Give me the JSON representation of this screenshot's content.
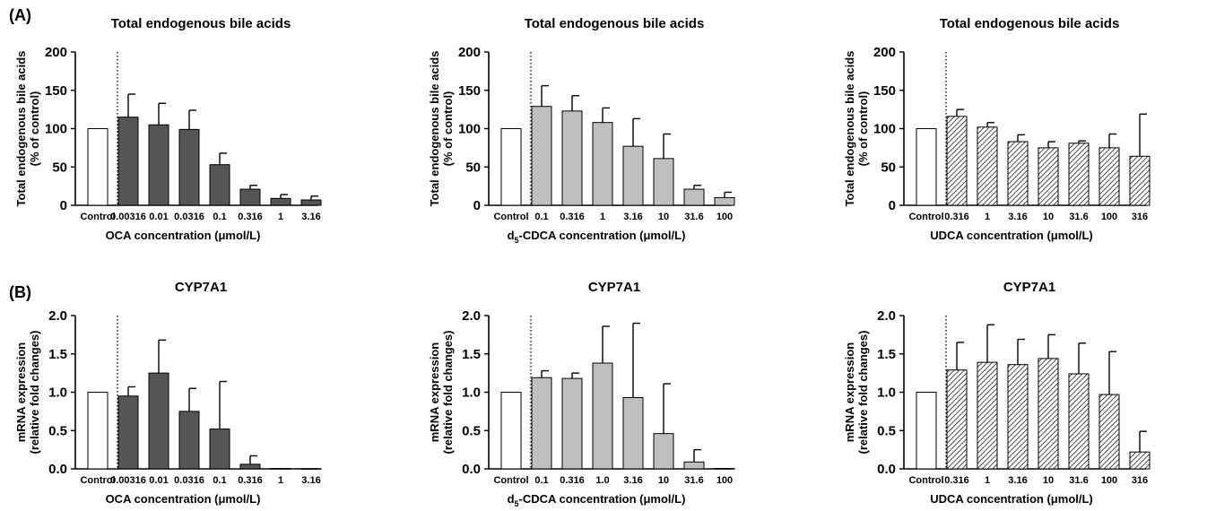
{
  "panel_labels": [
    "(A)",
    "(B)"
  ],
  "colors": {
    "OCA": "#555555",
    "d5-CDCA": "#bfbfbf",
    "UDCA": "hatched",
    "control": "#ffffff"
  },
  "chart_data": [
    {
      "type": "bar",
      "panel": "(A)",
      "fill": "dark",
      "title": "Total endogenous bile acids",
      "ylabel": [
        "Total endogenous bile acids",
        "(% of control)"
      ],
      "xlabel": "OCA concentration (μmol/L)",
      "categories": [
        "Control",
        "0.00316",
        "0.01",
        "0.0316",
        "0.1",
        "0.316",
        "1",
        "3.16"
      ],
      "values": [
        100,
        115,
        105,
        99,
        53,
        21,
        9,
        7
      ],
      "errors": [
        0,
        30,
        28,
        25,
        15,
        5,
        5,
        5
      ],
      "ylim": [
        0,
        200
      ],
      "yticks": [
        "0",
        "50",
        "100",
        "150",
        "200"
      ]
    },
    {
      "type": "bar",
      "panel": "(A)",
      "fill": "light",
      "title": "Total endogenous bile acids",
      "ylabel": [
        "Total endogenous bile acids",
        "(% of control)"
      ],
      "xlabel": "d5-CDCA concentration (μmol/L)",
      "categories": [
        "Control",
        "0.1",
        "0.316",
        "1",
        "3.16",
        "10",
        "31.6",
        "100"
      ],
      "values": [
        100,
        129,
        123,
        108,
        77,
        61,
        21,
        10
      ],
      "errors": [
        0,
        27,
        20,
        19,
        36,
        32,
        5,
        7
      ],
      "ylim": [
        0,
        200
      ],
      "yticks": [
        "0",
        "50",
        "100",
        "150",
        "200"
      ]
    },
    {
      "type": "bar",
      "panel": "(A)",
      "fill": "hatch",
      "title": "Total endogenous bile acids",
      "ylabel": [
        "Total endogenous bile acids",
        "(% of control)"
      ],
      "xlabel": "UDCA concentration (μmol/L)",
      "categories": [
        "Control",
        "0.316",
        "1",
        "3.16",
        "10",
        "31.6",
        "100",
        "316"
      ],
      "values": [
        100,
        116,
        102,
        83,
        75,
        81,
        75,
        64
      ],
      "errors": [
        0,
        9,
        6,
        9,
        8,
        3,
        18,
        55
      ],
      "ylim": [
        0,
        200
      ],
      "yticks": [
        "0",
        "50",
        "100",
        "150",
        "200"
      ]
    },
    {
      "type": "bar",
      "panel": "(B)",
      "fill": "dark",
      "title": "CYP7A1",
      "ylabel": [
        "mRNA expression",
        "(relative fold changes)"
      ],
      "xlabel": "OCA concentration (μmol/L)",
      "categories": [
        "Control",
        "0.00316",
        "0.01",
        "0.0316",
        "0.1",
        "0.316",
        "1",
        "3.16"
      ],
      "values": [
        1.0,
        0.95,
        1.25,
        0.75,
        0.52,
        0.06,
        0.005,
        0.003
      ],
      "errors": [
        0,
        0.12,
        0.43,
        0.3,
        0.62,
        0.11,
        0,
        0
      ],
      "ylim": [
        0,
        2.0
      ],
      "yticks": [
        "0.0",
        "0.5",
        "1.0",
        "1.5",
        "2.0"
      ]
    },
    {
      "type": "bar",
      "panel": "(B)",
      "fill": "light",
      "title": "CYP7A1",
      "ylabel": [
        "mRNA expression",
        "(relative fold changes)"
      ],
      "xlabel": "d5-CDCA concentration (μmol/L)",
      "categories": [
        "Control",
        "0.1",
        "0.316",
        "1.0",
        "3.16",
        "10",
        "31.6",
        "100"
      ],
      "values": [
        1.0,
        1.19,
        1.18,
        1.38,
        0.93,
        0.46,
        0.09,
        0.005
      ],
      "errors": [
        0,
        0.09,
        0.07,
        0.48,
        0.97,
        0.65,
        0.16,
        0
      ],
      "ylim": [
        0,
        2.0
      ],
      "yticks": [
        "0.0",
        "0.5",
        "1.0",
        "1.5",
        "2.0"
      ]
    },
    {
      "type": "bar",
      "panel": "(B)",
      "fill": "hatch",
      "title": "CYP7A1",
      "ylabel": [
        "mRNA expression",
        "(relative fold changes)"
      ],
      "xlabel": "UDCA concentration (μmol/L)",
      "categories": [
        "Control",
        "0.316",
        "1",
        "3.16",
        "10",
        "31.6",
        "100",
        "316"
      ],
      "values": [
        1.0,
        1.29,
        1.39,
        1.36,
        1.44,
        1.24,
        0.97,
        0.22
      ],
      "errors": [
        0,
        0.36,
        0.49,
        0.33,
        0.31,
        0.4,
        0.56,
        0.27
      ],
      "ylim": [
        0,
        2.0
      ],
      "yticks": [
        "0.0",
        "0.5",
        "1.0",
        "1.5",
        "2.0"
      ]
    }
  ]
}
